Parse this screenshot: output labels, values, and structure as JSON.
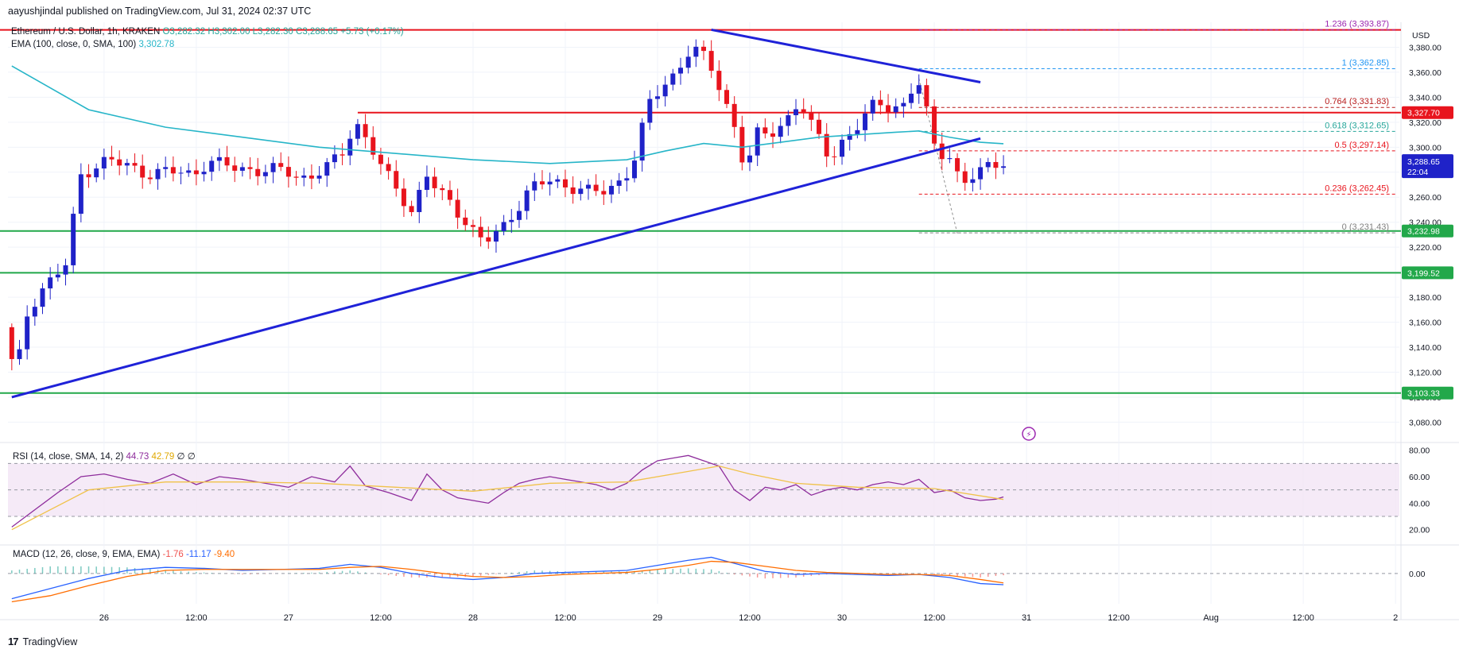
{
  "header": {
    "publisher": "aayushjindal published on TradingView.com, Jul 31, 2024 02:37 UTC",
    "symbol": "Ethereum / U.S. Dollar, 1h, KRAKEN",
    "ohlc": "O3,282.32 H3,302.00 L3,282.30 C3,288.65 +5.73 (+0.17%)",
    "ema_label": "EMA (100, close, 0, SMA, 100)",
    "ema_value": "3,302.78"
  },
  "footer": {
    "brand": "TradingView"
  },
  "colors": {
    "up": "#1f22c8",
    "down": "#e8141d",
    "ema": "#26b5c8",
    "trend": "#1f22d8",
    "resistance": "#e8141d",
    "support": "#22a84a",
    "rsi": "#8e2c9c",
    "rsi_sma": "#f0c24a",
    "macd": "#2962ff",
    "signal": "#ff6d00"
  },
  "chart_data": [
    {
      "type": "candlestick",
      "title": "Ethereum / U.S. Dollar, 1h, KRAKEN",
      "ylabel": "USD",
      "ylim": [
        3065,
        3400
      ],
      "y_ticks": [
        3080,
        3100,
        3120,
        3140,
        3160,
        3180,
        3200,
        3220,
        3240,
        3260,
        3280,
        3300,
        3320,
        3340,
        3360,
        3380
      ],
      "y_tick_labels": [
        "3,080.00",
        "3,100.00",
        "3,120.00",
        "3,140.00",
        "3,160.00",
        "3,180.00",
        "3,200.00",
        "3,220.00",
        "3,240.00",
        "3,260.00",
        "3,280.00",
        "3,300.00",
        "3,320.00",
        "3,340.00",
        "3,360.00",
        "3,380.00"
      ],
      "x_ticks": [
        {
          "label": "26",
          "t": 12
        },
        {
          "label": "12:00",
          "t": 24
        },
        {
          "label": "27",
          "t": 36
        },
        {
          "label": "12:00",
          "t": 48
        },
        {
          "label": "28",
          "t": 60
        },
        {
          "label": "12:00",
          "t": 72
        },
        {
          "label": "29",
          "t": 84
        },
        {
          "label": "12:00",
          "t": 96
        },
        {
          "label": "30",
          "t": 108
        },
        {
          "label": "12:00",
          "t": 120
        },
        {
          "label": "31",
          "t": 132
        },
        {
          "label": "12:00",
          "t": 144
        },
        {
          "label": "Aug",
          "t": 156
        },
        {
          "label": "12:00",
          "t": 168
        },
        {
          "label": "2",
          "t": 180
        }
      ],
      "x_range": [
        -0.5,
        180.5
      ],
      "candle_path": [
        [
          0,
          3150
        ],
        [
          1,
          3105
        ],
        [
          2,
          3160
        ],
        [
          4,
          3185
        ],
        [
          6,
          3196
        ],
        [
          8,
          3208
        ],
        [
          9,
          3275
        ],
        [
          11,
          3285
        ],
        [
          13,
          3290
        ],
        [
          15,
          3285
        ],
        [
          18,
          3280
        ],
        [
          21,
          3280
        ],
        [
          24,
          3278
        ],
        [
          26,
          3290
        ],
        [
          28,
          3285
        ],
        [
          30,
          3282
        ],
        [
          32,
          3283
        ],
        [
          34,
          3282
        ],
        [
          36,
          3280
        ],
        [
          38,
          3275
        ],
        [
          40,
          3280
        ],
        [
          42,
          3285
        ],
        [
          44,
          3298
        ],
        [
          45,
          3322
        ],
        [
          47,
          3305
        ],
        [
          49,
          3278
        ],
        [
          51,
          3262
        ],
        [
          53,
          3245
        ],
        [
          54,
          3285
        ],
        [
          56,
          3262
        ],
        [
          58,
          3252
        ],
        [
          60,
          3238
        ],
        [
          62,
          3225
        ],
        [
          64,
          3230
        ],
        [
          66,
          3250
        ],
        [
          68,
          3270
        ],
        [
          70,
          3272
        ],
        [
          72,
          3268
        ],
        [
          74,
          3270
        ],
        [
          76,
          3265
        ],
        [
          78,
          3262
        ],
        [
          80,
          3275
        ],
        [
          82,
          3300
        ],
        [
          83,
          3332
        ],
        [
          85,
          3345
        ],
        [
          87,
          3360
        ],
        [
          88,
          3375
        ],
        [
          89,
          3382
        ],
        [
          90,
          3375
        ],
        [
          91,
          3368
        ],
        [
          93,
          3340
        ],
        [
          95,
          3310
        ],
        [
          96,
          3278
        ],
        [
          97,
          3310
        ],
        [
          99,
          3308
        ],
        [
          101,
          3320
        ],
        [
          103,
          3340
        ],
        [
          104,
          3322
        ],
        [
          106,
          3300
        ],
        [
          107,
          3290
        ],
        [
          109,
          3310
        ],
        [
          111,
          3320
        ],
        [
          113,
          3335
        ],
        [
          115,
          3332
        ],
        [
          117,
          3336
        ],
        [
          118,
          3356
        ],
        [
          119,
          3342
        ],
        [
          120,
          3310
        ],
        [
          121,
          3292
        ],
        [
          122,
          3300
        ],
        [
          123,
          3288
        ],
        [
          124,
          3270
        ],
        [
          125,
          3275
        ],
        [
          126,
          3276
        ],
        [
          127,
          3282
        ],
        [
          129,
          3290
        ]
      ],
      "ema": [
        [
          0,
          3365
        ],
        [
          10,
          3330
        ],
        [
          20,
          3316
        ],
        [
          30,
          3308
        ],
        [
          40,
          3300
        ],
        [
          50,
          3295
        ],
        [
          60,
          3290
        ],
        [
          70,
          3287
        ],
        [
          80,
          3290
        ],
        [
          85,
          3297
        ],
        [
          90,
          3303
        ],
        [
          95,
          3300
        ],
        [
          100,
          3304
        ],
        [
          105,
          3308
        ],
        [
          110,
          3310
        ],
        [
          115,
          3312
        ],
        [
          118,
          3313
        ],
        [
          122,
          3308
        ],
        [
          126,
          3304
        ],
        [
          129,
          3302.78
        ]
      ],
      "price_label": {
        "value": "3,288.65",
        "sub": "22:04",
        "y": 3288.65
      },
      "horizontal_levels": [
        {
          "y": 3393.87,
          "label": ""
        },
        {
          "y": 3327.7,
          "label": "3,327.70",
          "x_from": 45
        },
        {
          "y": 3232.98,
          "label": "3,232.98"
        },
        {
          "y": 3199.52,
          "label": "3,199.52"
        },
        {
          "y": 3103.33,
          "label": "3,103.33"
        }
      ],
      "trendlines": [
        {
          "from": [
            0,
            3100
          ],
          "to": [
            126,
            3307
          ]
        },
        {
          "from": [
            91,
            3394
          ],
          "to": [
            126,
            3352
          ]
        }
      ],
      "fib": [
        {
          "ratio": "1.236",
          "value": "3,393.87",
          "y": 3393.87
        },
        {
          "ratio": "1",
          "value": "3,362.85",
          "y": 3362.85
        },
        {
          "ratio": "0.764",
          "value": "3,331.83",
          "y": 3331.83
        },
        {
          "ratio": "0.618",
          "value": "3,312.65",
          "y": 3312.65
        },
        {
          "ratio": "0.5",
          "value": "3,297.14",
          "y": 3297.14
        },
        {
          "ratio": "0.236",
          "value": "3,262.45",
          "y": 3262.45
        },
        {
          "ratio": "0",
          "value": "3,231.43",
          "y": 3231.43
        }
      ],
      "fib_x_range": [
        118,
        180
      ]
    },
    {
      "type": "line",
      "title": "RSI (14, close, SMA, 14, 2)",
      "legend_values": [
        "44.73",
        "42.79",
        "∅",
        "∅"
      ],
      "ylim": [
        12,
        84
      ],
      "y_ticks": [
        20,
        40,
        60,
        80
      ],
      "y_tick_labels": [
        "20.00",
        "40.00",
        "60.00",
        "80.00"
      ],
      "band": [
        30,
        70
      ],
      "series": [
        {
          "name": "RSI",
          "values": [
            [
              0,
              22
            ],
            [
              3,
              35
            ],
            [
              6,
              48
            ],
            [
              9,
              60
            ],
            [
              12,
              62
            ],
            [
              15,
              58
            ],
            [
              18,
              55
            ],
            [
              21,
              62
            ],
            [
              24,
              54
            ],
            [
              27,
              60
            ],
            [
              30,
              58
            ],
            [
              33,
              55
            ],
            [
              36,
              52
            ],
            [
              39,
              60
            ],
            [
              42,
              56
            ],
            [
              44,
              68
            ],
            [
              46,
              53
            ],
            [
              49,
              48
            ],
            [
              52,
              42
            ],
            [
              54,
              62
            ],
            [
              56,
              50
            ],
            [
              58,
              44
            ],
            [
              60,
              42
            ],
            [
              62,
              40
            ],
            [
              64,
              48
            ],
            [
              66,
              55
            ],
            [
              68,
              58
            ],
            [
              70,
              60
            ],
            [
              72,
              58
            ],
            [
              74,
              56
            ],
            [
              76,
              54
            ],
            [
              78,
              50
            ],
            [
              80,
              55
            ],
            [
              82,
              65
            ],
            [
              84,
              72
            ],
            [
              86,
              74
            ],
            [
              88,
              76
            ],
            [
              90,
              72
            ],
            [
              92,
              68
            ],
            [
              94,
              50
            ],
            [
              96,
              42
            ],
            [
              98,
              52
            ],
            [
              100,
              50
            ],
            [
              102,
              54
            ],
            [
              104,
              46
            ],
            [
              106,
              50
            ],
            [
              108,
              52
            ],
            [
              110,
              50
            ],
            [
              112,
              54
            ],
            [
              114,
              56
            ],
            [
              116,
              54
            ],
            [
              118,
              58
            ],
            [
              120,
              48
            ],
            [
              122,
              50
            ],
            [
              124,
              44
            ],
            [
              126,
              42
            ],
            [
              128,
              43
            ],
            [
              129,
              44.73
            ]
          ]
        },
        {
          "name": "RSI-based MA",
          "values": [
            [
              0,
              20
            ],
            [
              10,
              50
            ],
            [
              20,
              56
            ],
            [
              30,
              56
            ],
            [
              40,
              55
            ],
            [
              50,
              52
            ],
            [
              60,
              49
            ],
            [
              70,
              55
            ],
            [
              80,
              56
            ],
            [
              88,
              64
            ],
            [
              92,
              68
            ],
            [
              96,
              62
            ],
            [
              102,
              55
            ],
            [
              110,
              52
            ],
            [
              120,
              51
            ],
            [
              129,
              42.79
            ]
          ]
        }
      ]
    },
    {
      "type": "line",
      "title": "MACD (12, 26, close, 9, EMA, EMA)",
      "legend_values": [
        "-1.76",
        "-11.17",
        "-9.40"
      ],
      "ylim": [
        -30,
        25
      ],
      "y_ticks": [
        0
      ],
      "y_tick_labels": [
        "0.00"
      ],
      "series": [
        {
          "name": "MACD",
          "values": [
            [
              0,
              -25
            ],
            [
              5,
              -15
            ],
            [
              10,
              -5
            ],
            [
              15,
              3
            ],
            [
              20,
              6
            ],
            [
              25,
              5
            ],
            [
              30,
              3
            ],
            [
              35,
              4
            ],
            [
              40,
              5
            ],
            [
              44,
              9
            ],
            [
              48,
              6
            ],
            [
              52,
              0
            ],
            [
              56,
              -4
            ],
            [
              60,
              -6
            ],
            [
              64,
              -4
            ],
            [
              68,
              0
            ],
            [
              72,
              1
            ],
            [
              76,
              2
            ],
            [
              80,
              3
            ],
            [
              84,
              8
            ],
            [
              88,
              13
            ],
            [
              91,
              16
            ],
            [
              94,
              10
            ],
            [
              98,
              2
            ],
            [
              102,
              -1
            ],
            [
              106,
              0
            ],
            [
              110,
              -1
            ],
            [
              114,
              -2
            ],
            [
              118,
              -1
            ],
            [
              122,
              -4
            ],
            [
              126,
              -10
            ],
            [
              129,
              -11.17
            ]
          ]
        },
        {
          "name": "Signal",
          "values": [
            [
              0,
              -28
            ],
            [
              5,
              -22
            ],
            [
              10,
              -12
            ],
            [
              15,
              -3
            ],
            [
              20,
              3
            ],
            [
              25,
              4
            ],
            [
              30,
              4
            ],
            [
              35,
              4
            ],
            [
              40,
              4
            ],
            [
              44,
              6
            ],
            [
              48,
              7
            ],
            [
              52,
              4
            ],
            [
              56,
              0
            ],
            [
              60,
              -3
            ],
            [
              64,
              -4
            ],
            [
              68,
              -3
            ],
            [
              72,
              -1
            ],
            [
              76,
              0
            ],
            [
              80,
              1
            ],
            [
              84,
              4
            ],
            [
              88,
              8
            ],
            [
              91,
              12
            ],
            [
              94,
              11
            ],
            [
              98,
              7
            ],
            [
              102,
              3
            ],
            [
              106,
              1
            ],
            [
              110,
              0
            ],
            [
              114,
              -1
            ],
            [
              118,
              -1
            ],
            [
              122,
              -2
            ],
            [
              126,
              -6
            ],
            [
              129,
              -9.4
            ]
          ]
        }
      ]
    }
  ]
}
